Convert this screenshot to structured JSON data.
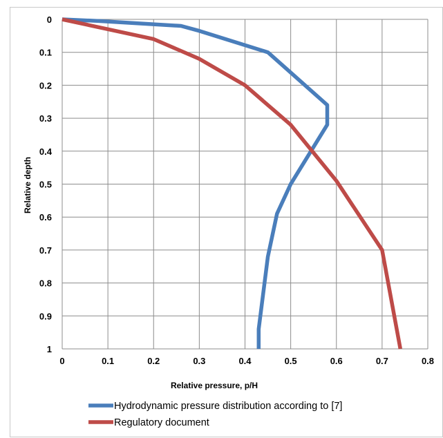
{
  "chart_data": {
    "type": "line",
    "xlabel": "Relative pressure, p/H",
    "ylabel": "Relative depth",
    "xlim": [
      0,
      0.8
    ],
    "ylim": [
      0,
      1
    ],
    "y_inverted": true,
    "grid": true,
    "legend_position": "bottom",
    "x_ticks": [
      "0",
      "0.1",
      "0.2",
      "0.3",
      "0.4",
      "0.5",
      "0.6",
      "0.7",
      "0.8"
    ],
    "y_ticks": [
      "0",
      "0.1",
      "0.2",
      "0.3",
      "0.4",
      "0.5",
      "0.6",
      "0.7",
      "0.8",
      "0.9",
      "1"
    ],
    "series": [
      {
        "name": "Hydrodynamic pressure distribution according to [7]",
        "color": "#4a7ebb",
        "points": [
          [
            0,
            0
          ],
          [
            0.08,
            0.005
          ],
          [
            0.26,
            0.02
          ],
          [
            0.3,
            0.035
          ],
          [
            0.45,
            0.1
          ],
          [
            0.58,
            0.26
          ],
          [
            0.58,
            0.32
          ],
          [
            0.5,
            0.5
          ],
          [
            0.47,
            0.59
          ],
          [
            0.45,
            0.72
          ],
          [
            0.43,
            0.94
          ],
          [
            0.43,
            1.0
          ]
        ]
      },
      {
        "name": "Regulatory document",
        "color": "#be4b48",
        "points": [
          [
            0,
            0
          ],
          [
            0.1,
            0.03
          ],
          [
            0.2,
            0.06
          ],
          [
            0.3,
            0.12
          ],
          [
            0.4,
            0.2
          ],
          [
            0.5,
            0.32
          ],
          [
            0.6,
            0.49
          ],
          [
            0.7,
            0.7
          ],
          [
            0.74,
            1.0
          ]
        ]
      }
    ]
  }
}
